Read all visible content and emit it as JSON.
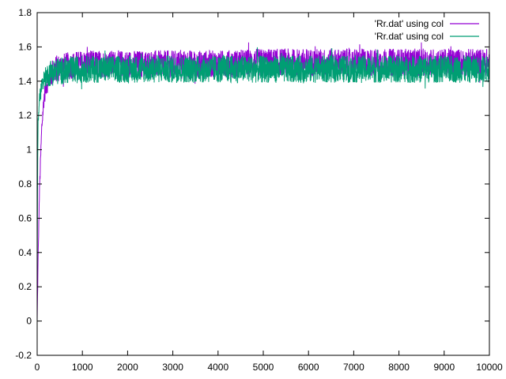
{
  "chart_data": {
    "type": "line",
    "title": "",
    "xlabel": "",
    "ylabel": "",
    "xlim": [
      0,
      10000
    ],
    "ylim": [
      -0.2,
      1.8
    ],
    "xticks": [
      0,
      1000,
      2000,
      3000,
      4000,
      5000,
      6000,
      7000,
      8000,
      9000,
      10000
    ],
    "yticks": [
      -0.2,
      0,
      0.2,
      0.4,
      0.6,
      0.8,
      1,
      1.2,
      1.4,
      1.6,
      1.8
    ],
    "xtick_labels": [
      "0",
      "1000",
      "2000",
      "3000",
      "4000",
      "5000",
      "6000",
      "7000",
      "8000",
      "9000",
      "10000"
    ],
    "ytick_labels": [
      "-0.2",
      "0",
      "0.2",
      "0.4",
      "0.6",
      "0.8",
      "1",
      "1.2",
      "1.4",
      "1.6",
      "1.8"
    ],
    "grid": false,
    "legend_position": "top-right",
    "series": [
      {
        "name": "'Rr.dat' using col",
        "color": "#9400d3",
        "noise_band": 0.08,
        "x": [
          0,
          20,
          50,
          100,
          150,
          200,
          300,
          400,
          500,
          700,
          1000,
          2000,
          3000,
          4000,
          5000,
          6000,
          7000,
          8000,
          9000,
          10000
        ],
        "y": [
          0.0,
          0.35,
          0.75,
          1.12,
          1.3,
          1.38,
          1.44,
          1.47,
          1.48,
          1.49,
          1.5,
          1.5,
          1.5,
          1.5,
          1.51,
          1.51,
          1.51,
          1.51,
          1.51,
          1.51
        ]
      },
      {
        "name": "'Rr.dat' using col",
        "color": "#009e73",
        "noise_band": 0.08,
        "x": [
          0,
          10,
          20,
          50,
          100,
          150,
          200,
          300,
          500,
          1000,
          2000,
          3000,
          4000,
          5000,
          6000,
          7000,
          8000,
          9000,
          10000
        ],
        "y": [
          0.2,
          0.9,
          1.15,
          1.3,
          1.38,
          1.41,
          1.43,
          1.45,
          1.46,
          1.47,
          1.47,
          1.47,
          1.47,
          1.47,
          1.47,
          1.47,
          1.47,
          1.47,
          1.47
        ]
      }
    ]
  }
}
